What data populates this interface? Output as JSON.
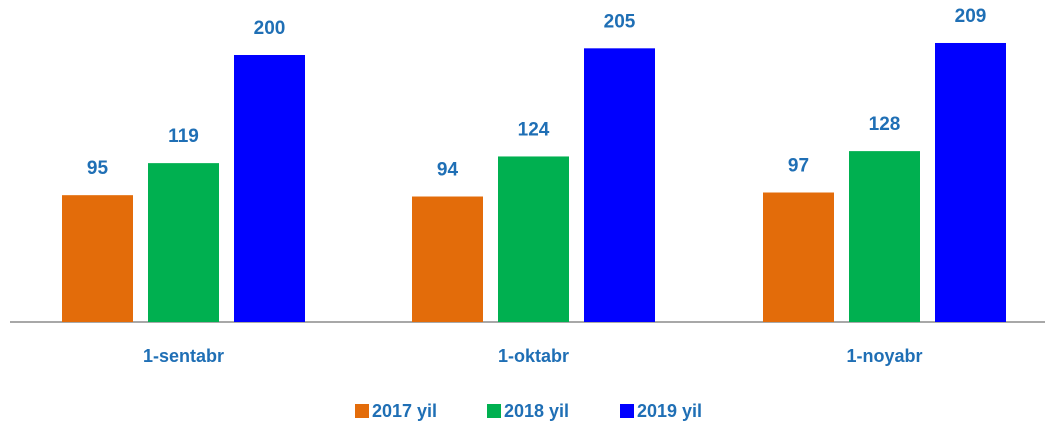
{
  "chart_data": {
    "type": "bar",
    "categories": [
      "1-sentabr",
      "1-oktabr",
      "1-noyabr"
    ],
    "series": [
      {
        "name": "2017 yil",
        "color": "#e36c0a",
        "values": [
          95,
          94,
          97
        ]
      },
      {
        "name": "2018 yil",
        "color": "#00b050",
        "values": [
          119,
          124,
          128
        ]
      },
      {
        "name": "2019 yil",
        "color": "#0000ff",
        "values": [
          200,
          205,
          209
        ]
      }
    ],
    "legend": "bottom"
  }
}
